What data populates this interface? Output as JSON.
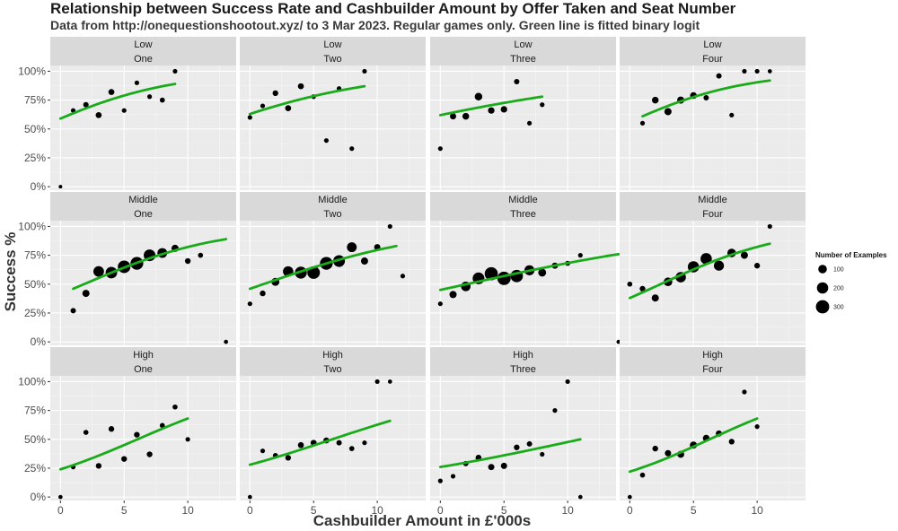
{
  "title": "Relationship between Success Rate and Cashbuilder Amount by Offer Taken and Seat Number",
  "subtitle": "Data from http://onequestionshootout.xyz/ to 3 Mar 2023. Regular games only. Green line is fitted binary logit",
  "colors": {
    "fit_line": "#1aab1a",
    "points": "#000000",
    "panel_bg": "#ebebeb",
    "strip_bg": "#d9d9d9"
  },
  "chart_data": {
    "type": "scatter",
    "xlabel": "Cashbuilder Amount in £'000s",
    "ylabel": "Success %",
    "xlim": [
      -0.8,
      13.8
    ],
    "ylim": [
      -0.03,
      1.05
    ],
    "x_ticks": [
      0,
      5,
      10
    ],
    "x_tick_labels": [
      "0",
      "5",
      "10"
    ],
    "y_ticks": [
      0,
      0.25,
      0.5,
      0.75,
      1.0
    ],
    "y_tick_labels": [
      "0%",
      "25%",
      "50%",
      "75%",
      "100%"
    ],
    "legend": {
      "title": "Number of Examples",
      "placement": "right",
      "entries": [
        {
          "label": "100",
          "n": 100
        },
        {
          "label": "200",
          "n": 200
        },
        {
          "label": "300",
          "n": 300
        }
      ]
    },
    "row_labels": [
      "Low",
      "Middle",
      "High"
    ],
    "col_labels": [
      "One",
      "Two",
      "Three",
      "Four"
    ],
    "panels": [
      {
        "offer": "Low",
        "seat": "One",
        "points": [
          [
            0,
            0.0,
            5
          ],
          [
            1,
            0.66,
            15
          ],
          [
            2,
            0.71,
            25
          ],
          [
            3,
            0.62,
            35
          ],
          [
            4,
            0.82,
            35
          ],
          [
            5,
            0.66,
            15
          ],
          [
            6,
            0.9,
            15
          ],
          [
            7,
            0.78,
            15
          ],
          [
            8,
            0.75,
            20
          ],
          [
            9,
            1.0,
            15
          ]
        ],
        "fit": {
          "x0": 0,
          "x1": 9,
          "y0": 0.59,
          "y1": 0.89
        }
      },
      {
        "offer": "Low",
        "seat": "Two",
        "points": [
          [
            0,
            0.6,
            15
          ],
          [
            1,
            0.7,
            15
          ],
          [
            2,
            0.81,
            30
          ],
          [
            3,
            0.68,
            35
          ],
          [
            4,
            0.87,
            35
          ],
          [
            5,
            0.78,
            15
          ],
          [
            6,
            0.4,
            15
          ],
          [
            7,
            0.85,
            15
          ],
          [
            8,
            0.33,
            15
          ],
          [
            9,
            1.0,
            15
          ]
        ],
        "fit": {
          "x0": 0,
          "x1": 9,
          "y0": 0.63,
          "y1": 0.87
        }
      },
      {
        "offer": "Low",
        "seat": "Three",
        "points": [
          [
            0,
            0.33,
            15
          ],
          [
            1,
            0.61,
            40
          ],
          [
            2,
            0.61,
            50
          ],
          [
            3,
            0.78,
            70
          ],
          [
            4,
            0.66,
            45
          ],
          [
            5,
            0.67,
            45
          ],
          [
            6,
            0.91,
            25
          ],
          [
            7,
            0.55,
            15
          ],
          [
            8,
            0.71,
            15
          ]
        ],
        "fit": {
          "x0": 0,
          "x1": 8,
          "y0": 0.62,
          "y1": 0.78
        }
      },
      {
        "offer": "Low",
        "seat": "Four",
        "points": [
          [
            1,
            0.55,
            15
          ],
          [
            2,
            0.75,
            50
          ],
          [
            3,
            0.65,
            60
          ],
          [
            4,
            0.75,
            60
          ],
          [
            5,
            0.79,
            50
          ],
          [
            6,
            0.77,
            25
          ],
          [
            7,
            0.96,
            25
          ],
          [
            8,
            0.62,
            15
          ],
          [
            9,
            1.0,
            15
          ],
          [
            10,
            1.0,
            15
          ],
          [
            11,
            1.0,
            10
          ]
        ],
        "fit": {
          "x0": 1,
          "x1": 11,
          "y0": 0.61,
          "y1": 0.92
        }
      },
      {
        "offer": "Middle",
        "seat": "One",
        "points": [
          [
            1,
            0.27,
            25
          ],
          [
            2,
            0.42,
            60
          ],
          [
            3,
            0.61,
            170
          ],
          [
            4,
            0.6,
            210
          ],
          [
            5,
            0.65,
            260
          ],
          [
            6,
            0.68,
            270
          ],
          [
            7,
            0.75,
            220
          ],
          [
            8,
            0.77,
            140
          ],
          [
            9,
            0.81,
            60
          ],
          [
            10,
            0.7,
            30
          ],
          [
            11,
            0.75,
            20
          ],
          [
            13,
            0.0,
            10
          ]
        ],
        "fit": {
          "x0": 1,
          "x1": 13,
          "y0": 0.46,
          "y1": 0.89
        }
      },
      {
        "offer": "Middle",
        "seat": "Two",
        "points": [
          [
            0,
            0.33,
            15
          ],
          [
            1,
            0.42,
            30
          ],
          [
            2,
            0.52,
            80
          ],
          [
            3,
            0.61,
            160
          ],
          [
            4,
            0.6,
            230
          ],
          [
            5,
            0.6,
            260
          ],
          [
            6,
            0.68,
            270
          ],
          [
            7,
            0.7,
            220
          ],
          [
            8,
            0.82,
            140
          ],
          [
            9,
            0.7,
            60
          ],
          [
            10,
            0.82,
            40
          ],
          [
            11,
            1.0,
            15
          ],
          [
            12,
            0.57,
            15
          ]
        ],
        "fit": {
          "x0": 0,
          "x1": 11.5,
          "y0": 0.46,
          "y1": 0.83
        }
      },
      {
        "offer": "Middle",
        "seat": "Three",
        "points": [
          [
            0,
            0.33,
            15
          ],
          [
            1,
            0.41,
            60
          ],
          [
            2,
            0.48,
            130
          ],
          [
            3,
            0.55,
            220
          ],
          [
            4,
            0.59,
            290
          ],
          [
            5,
            0.55,
            300
          ],
          [
            6,
            0.57,
            250
          ],
          [
            7,
            0.62,
            150
          ],
          [
            8,
            0.6,
            80
          ],
          [
            9,
            0.66,
            40
          ],
          [
            10,
            0.68,
            20
          ],
          [
            11,
            0.75,
            15
          ],
          [
            14,
            0.0,
            10
          ]
        ],
        "fit": {
          "x0": 0,
          "x1": 14,
          "y0": 0.45,
          "y1": 0.76
        }
      },
      {
        "offer": "Middle",
        "seat": "Four",
        "points": [
          [
            0,
            0.5,
            20
          ],
          [
            1,
            0.46,
            30
          ],
          [
            2,
            0.38,
            60
          ],
          [
            3,
            0.52,
            100
          ],
          [
            4,
            0.56,
            160
          ],
          [
            5,
            0.65,
            200
          ],
          [
            6,
            0.72,
            200
          ],
          [
            7,
            0.66,
            150
          ],
          [
            8,
            0.77,
            100
          ],
          [
            9,
            0.75,
            60
          ],
          [
            10,
            0.66,
            30
          ],
          [
            11,
            1.0,
            15
          ]
        ],
        "fit": {
          "x0": 0,
          "x1": 11,
          "y0": 0.38,
          "y1": 0.85
        }
      },
      {
        "offer": "High",
        "seat": "One",
        "points": [
          [
            0,
            0.0,
            10
          ],
          [
            1,
            0.26,
            15
          ],
          [
            2,
            0.56,
            20
          ],
          [
            3,
            0.27,
            30
          ],
          [
            4,
            0.59,
            30
          ],
          [
            5,
            0.33,
            30
          ],
          [
            6,
            0.54,
            30
          ],
          [
            7,
            0.37,
            30
          ],
          [
            8,
            0.62,
            20
          ],
          [
            9,
            0.78,
            20
          ],
          [
            10,
            0.5,
            15
          ]
        ],
        "fit": {
          "x0": 0,
          "x1": 10,
          "y0": 0.24,
          "y1": 0.68
        }
      },
      {
        "offer": "High",
        "seat": "Two",
        "points": [
          [
            0,
            0.0,
            10
          ],
          [
            1,
            0.4,
            15
          ],
          [
            2,
            0.36,
            20
          ],
          [
            3,
            0.34,
            30
          ],
          [
            4,
            0.45,
            35
          ],
          [
            5,
            0.47,
            35
          ],
          [
            6,
            0.49,
            35
          ],
          [
            7,
            0.47,
            25
          ],
          [
            8,
            0.42,
            20
          ],
          [
            9,
            0.47,
            15
          ],
          [
            10,
            1.0,
            15
          ],
          [
            11,
            1.0,
            10
          ]
        ],
        "fit": {
          "x0": 0,
          "x1": 11,
          "y0": 0.28,
          "y1": 0.66
        }
      },
      {
        "offer": "High",
        "seat": "Three",
        "points": [
          [
            0,
            0.14,
            15
          ],
          [
            1,
            0.18,
            15
          ],
          [
            2,
            0.29,
            25
          ],
          [
            3,
            0.34,
            35
          ],
          [
            4,
            0.26,
            40
          ],
          [
            5,
            0.27,
            40
          ],
          [
            6,
            0.43,
            30
          ],
          [
            7,
            0.46,
            25
          ],
          [
            8,
            0.37,
            15
          ],
          [
            9,
            0.75,
            15
          ],
          [
            10,
            1.0,
            15
          ],
          [
            11,
            0.0,
            10
          ]
        ],
        "fit": {
          "x0": 0,
          "x1": 11,
          "y0": 0.26,
          "y1": 0.5
        }
      },
      {
        "offer": "High",
        "seat": "Four",
        "points": [
          [
            0,
            0.0,
            10
          ],
          [
            1,
            0.19,
            20
          ],
          [
            2,
            0.42,
            30
          ],
          [
            3,
            0.38,
            40
          ],
          [
            4,
            0.37,
            55
          ],
          [
            5,
            0.45,
            60
          ],
          [
            6,
            0.51,
            50
          ],
          [
            7,
            0.55,
            40
          ],
          [
            8,
            0.48,
            30
          ],
          [
            9,
            0.91,
            15
          ],
          [
            10,
            0.61,
            15
          ]
        ],
        "fit": {
          "x0": 0,
          "x1": 10,
          "y0": 0.22,
          "y1": 0.68
        }
      }
    ]
  }
}
